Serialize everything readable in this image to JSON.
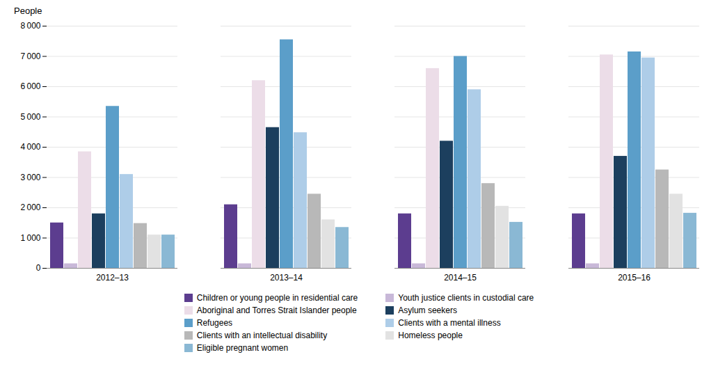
{
  "chart_data": {
    "type": "bar",
    "ylabel": "People",
    "categories": [
      "2012–13",
      "2013–14",
      "2014–15",
      "2015–16"
    ],
    "series": [
      {
        "name": "Children or young people in residential care",
        "color": "#5c3d8f",
        "values": [
          1500,
          2100,
          1800,
          1800
        ]
      },
      {
        "name": "Youth justice clients in custodial care",
        "color": "#c8b8d8",
        "values": [
          150,
          150,
          150,
          150
        ]
      },
      {
        "name": "Aboriginal and Torres Strait Islander people",
        "color": "#ecdde8",
        "values": [
          3850,
          6200,
          6600,
          7050
        ]
      },
      {
        "name": "Asylum seekers",
        "color": "#1c3f5e",
        "values": [
          1800,
          4650,
          4200,
          3700
        ]
      },
      {
        "name": "Refugees",
        "color": "#5b9ec9",
        "values": [
          5350,
          7550,
          7000,
          7150
        ]
      },
      {
        "name": "Clients with a mental illness",
        "color": "#aecde8",
        "values": [
          3100,
          4480,
          5900,
          6950
        ]
      },
      {
        "name": "Clients with an intellectual disability",
        "color": "#b8b8b8",
        "values": [
          1480,
          2450,
          2800,
          3250
        ]
      },
      {
        "name": "Homeless people",
        "color": "#e2e2e2",
        "values": [
          1100,
          1600,
          2050,
          2450
        ]
      },
      {
        "name": "Eligible pregnant women",
        "color": "#8ab8d4",
        "values": [
          1100,
          1350,
          1520,
          1820
        ]
      }
    ],
    "ylim": [
      0,
      8000
    ],
    "yticks": [
      0,
      {
        "value": 1000,
        "label": "1 000"
      },
      {
        "value": 2000,
        "label": "2 000"
      },
      {
        "value": 3000,
        "label": "3 000"
      },
      {
        "value": 4000,
        "label": "4 000"
      },
      {
        "value": 5000,
        "label": "5 000"
      },
      {
        "value": 6000,
        "label": "6 000"
      },
      {
        "value": 7000,
        "label": "7 000"
      },
      {
        "value": 8000,
        "label": "8 000"
      }
    ],
    "grid": true,
    "legend": "bottom"
  }
}
